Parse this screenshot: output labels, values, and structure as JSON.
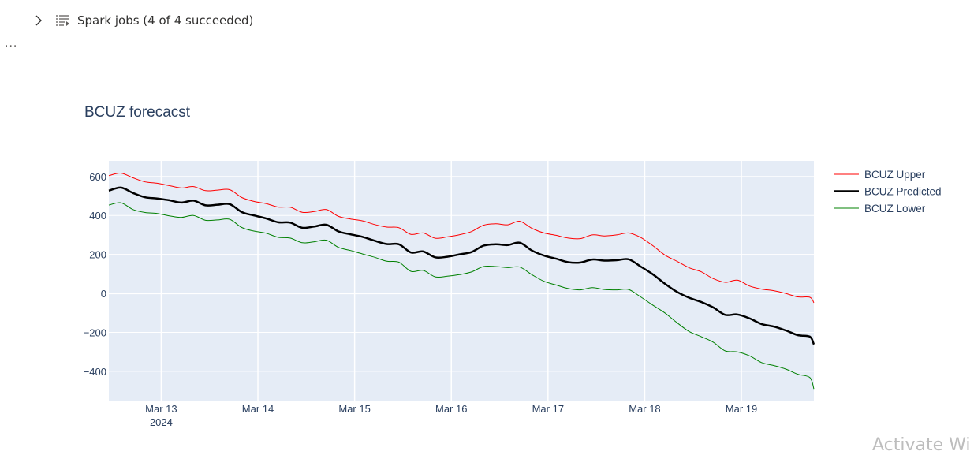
{
  "cell": {
    "spark_jobs_label": "Spark jobs (4 of 4 succeeded)",
    "more_label": "...",
    "icons": [
      "chevron-right-icon",
      "list-jobs-icon"
    ]
  },
  "watermark": "Activate Wi",
  "chart_data": {
    "type": "line",
    "title": "BCUZ forecacst",
    "xlabel": "",
    "ylabel": "",
    "x_range": [
      "2024-03-12T11:00",
      "2024-03-19T18:00"
    ],
    "ylim": [
      -550,
      680
    ],
    "yticks": [
      600,
      400,
      200,
      0,
      -200,
      -400
    ],
    "ytick_labels": [
      "600",
      "400",
      "200",
      "0",
      "−200",
      "−400"
    ],
    "xticks": [
      "2024-03-13",
      "2024-03-14",
      "2024-03-15",
      "2024-03-16",
      "2024-03-17",
      "2024-03-18",
      "2024-03-19"
    ],
    "xtick_labels": [
      "Mar 13",
      "Mar 14",
      "Mar 15",
      "Mar 16",
      "Mar 17",
      "Mar 18",
      "Mar 19"
    ],
    "x_year_label": "2024",
    "grid": true,
    "legend": "right",
    "plot_bg": "#e5ecf6",
    "x": [
      "2024-03-12T11:00",
      "2024-03-12T14:00",
      "2024-03-12T17:00",
      "2024-03-12T20:00",
      "2024-03-12T23:00",
      "2024-03-13T02:00",
      "2024-03-13T05:00",
      "2024-03-13T08:00",
      "2024-03-13T11:00",
      "2024-03-13T14:00",
      "2024-03-13T17:00",
      "2024-03-13T20:00",
      "2024-03-13T23:00",
      "2024-03-14T02:00",
      "2024-03-14T05:00",
      "2024-03-14T08:00",
      "2024-03-14T11:00",
      "2024-03-14T14:00",
      "2024-03-14T17:00",
      "2024-03-14T20:00",
      "2024-03-14T23:00",
      "2024-03-15T02:00",
      "2024-03-15T05:00",
      "2024-03-15T08:00",
      "2024-03-15T11:00",
      "2024-03-15T14:00",
      "2024-03-15T17:00",
      "2024-03-15T20:00",
      "2024-03-15T23:00",
      "2024-03-16T02:00",
      "2024-03-16T05:00",
      "2024-03-16T08:00",
      "2024-03-16T11:00",
      "2024-03-16T14:00",
      "2024-03-16T17:00",
      "2024-03-16T20:00",
      "2024-03-16T23:00",
      "2024-03-17T02:00",
      "2024-03-17T05:00",
      "2024-03-17T08:00",
      "2024-03-17T11:00",
      "2024-03-17T14:00",
      "2024-03-17T17:00",
      "2024-03-17T20:00",
      "2024-03-17T23:00",
      "2024-03-18T02:00",
      "2024-03-18T05:00",
      "2024-03-18T08:00",
      "2024-03-18T11:00",
      "2024-03-18T14:00",
      "2024-03-18T17:00",
      "2024-03-18T20:00",
      "2024-03-18T23:00",
      "2024-03-19T02:00",
      "2024-03-19T05:00",
      "2024-03-19T08:00",
      "2024-03-19T11:00",
      "2024-03-19T14:00",
      "2024-03-19T17:00",
      "2024-03-19T18:00"
    ],
    "series": [
      {
        "name": "BCUZ Upper",
        "color": "#ff0000",
        "width": 1,
        "values": [
          604,
          617,
          593,
          572,
          565,
          553,
          541,
          548,
          527,
          530,
          532,
          492,
          472,
          461,
          443,
          442,
          416,
          420,
          430,
          395,
          382,
          372,
          353,
          340,
          337,
          303,
          310,
          283,
          290,
          301,
          317,
          350,
          357,
          352,
          370,
          334,
          310,
          298,
          284,
          281,
          300,
          295,
          300,
          310,
          287,
          245,
          197,
          165,
          132,
          111,
          76,
          57,
          68,
          38,
          22,
          14,
          0,
          -18,
          -20,
          -48
        ]
      },
      {
        "name": "BCUZ Predicted",
        "color": "#000000",
        "width": 2.5,
        "values": [
          527,
          543,
          515,
          493,
          487,
          478,
          466,
          476,
          452,
          455,
          458,
          417,
          400,
          385,
          365,
          363,
          337,
          343,
          352,
          318,
          303,
          290,
          270,
          253,
          252,
          210,
          215,
          185,
          188,
          200,
          212,
          245,
          252,
          248,
          260,
          220,
          194,
          178,
          160,
          158,
          174,
          168,
          170,
          175,
          138,
          98,
          50,
          8,
          -22,
          -44,
          -72,
          -110,
          -108,
          -128,
          -157,
          -170,
          -190,
          -214,
          -222,
          -262
        ]
      },
      {
        "name": "BCUZ Lower",
        "color": "#008000",
        "width": 1,
        "values": [
          453,
          465,
          430,
          415,
          410,
          398,
          390,
          400,
          375,
          377,
          380,
          338,
          320,
          309,
          288,
          284,
          260,
          265,
          273,
          236,
          220,
          202,
          185,
          165,
          160,
          113,
          118,
          85,
          88,
          96,
          110,
          138,
          138,
          132,
          135,
          96,
          62,
          43,
          25,
          18,
          30,
          20,
          18,
          20,
          -18,
          -60,
          -100,
          -150,
          -195,
          -222,
          -250,
          -295,
          -300,
          -320,
          -355,
          -370,
          -388,
          -415,
          -432,
          -490
        ]
      }
    ]
  }
}
